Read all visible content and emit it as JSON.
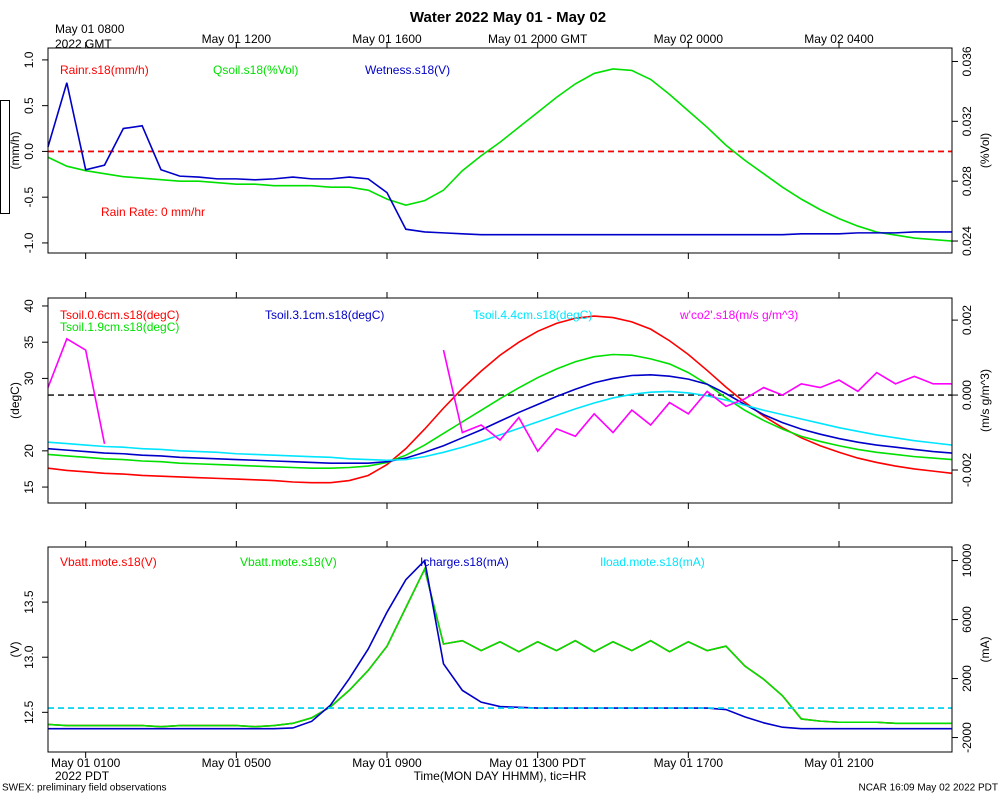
{
  "title": "Water 2022 May 01 - May 02",
  "footer_left": "SWEX: preliminary field observations",
  "footer_right": "NCAR 16:09 May 02 2022 PDT",
  "chart_data": [
    {
      "type": "line",
      "position": "top",
      "ylabel": "(mm/h)",
      "y2label": "(%Vol)",
      "annotation": "Rain Rate: 0 mm/hr",
      "xlim": [
        0,
        24
      ],
      "xticks": [
        {
          "value": 1,
          "label": "May 01 0800"
        },
        {
          "value": 5,
          "label": "May 01 1200"
        },
        {
          "value": 9,
          "label": "May 01 1600"
        },
        {
          "value": 13,
          "label": "May 01 2000 GMT"
        },
        {
          "value": 17,
          "label": "May 02 0000"
        },
        {
          "value": 21,
          "label": "May 02 0400"
        }
      ],
      "xtick_note": "2022 GMT",
      "ylim": [
        -1.11,
        1.13
      ],
      "yticks": [
        {
          "value": -1,
          "label": "-1.0"
        },
        -0.5,
        {
          "value": 0,
          "label": "0.0"
        },
        0.5,
        {
          "value": 1,
          "label": "1.0"
        }
      ],
      "y2lim": [
        0.0232,
        0.0369
      ],
      "y2ticks": [
        0.024,
        0.028,
        0.032,
        0.036
      ],
      "zero_line": "y",
      "x": [
        0,
        0.5,
        1,
        1.5,
        2,
        2.5,
        3,
        3.5,
        4,
        4.5,
        5,
        5.5,
        6,
        6.5,
        7,
        7.5,
        8,
        8.5,
        9,
        9.5,
        10,
        10.5,
        11,
        11.5,
        12,
        12.5,
        13,
        13.5,
        14,
        14.5,
        15,
        15.5,
        16,
        16.5,
        17,
        17.5,
        18,
        18.5,
        19,
        19.5,
        20,
        20.5,
        21,
        21.5,
        22,
        22.5,
        23,
        23.5,
        24
      ],
      "series": [
        {
          "name": "Rainr.s18(mm/h)",
          "color": "#ff0000",
          "dashed": true,
          "values": [
            0,
            0,
            0,
            0,
            0,
            0,
            0,
            0,
            0,
            0,
            0,
            0,
            0,
            0,
            0,
            0,
            0,
            0,
            0,
            0,
            0,
            0,
            0,
            0,
            0,
            0,
            0,
            0,
            0,
            0,
            0,
            0,
            0,
            0,
            0,
            0,
            0,
            0,
            0,
            0,
            0,
            0,
            0,
            0,
            0,
            0,
            0,
            0,
            0
          ]
        },
        {
          "name": "Qsoil.s18(%Vol)",
          "color": "#00e000",
          "axis": "y2",
          "values": [
            0.0296,
            0.029,
            0.0287,
            0.0285,
            0.0283,
            0.0282,
            0.0281,
            0.028,
            0.028,
            0.0279,
            0.0278,
            0.0278,
            0.0277,
            0.0277,
            0.0277,
            0.0276,
            0.0276,
            0.0274,
            0.0268,
            0.0264,
            0.0267,
            0.0274,
            0.0287,
            0.0297,
            0.0306,
            0.0316,
            0.0326,
            0.0336,
            0.0345,
            0.0352,
            0.0355,
            0.0354,
            0.0348,
            0.0338,
            0.0327,
            0.0316,
            0.0304,
            0.0294,
            0.0285,
            0.0276,
            0.0268,
            0.0261,
            0.0255,
            0.025,
            0.0246,
            0.0244,
            0.0242,
            0.0241,
            0.024
          ]
        },
        {
          "name": "Wetness.s18(V)",
          "color": "#0000c8",
          "values": [
            0.05,
            0.75,
            -0.2,
            -0.15,
            0.25,
            0.28,
            -0.2,
            -0.27,
            -0.28,
            -0.3,
            -0.3,
            -0.31,
            -0.3,
            -0.28,
            -0.3,
            -0.3,
            -0.28,
            -0.3,
            -0.45,
            -0.85,
            -0.88,
            -0.89,
            -0.9,
            -0.91,
            -0.91,
            -0.91,
            -0.91,
            -0.91,
            -0.91,
            -0.91,
            -0.91,
            -0.91,
            -0.91,
            -0.91,
            -0.91,
            -0.91,
            -0.91,
            -0.91,
            -0.91,
            -0.91,
            -0.9,
            -0.9,
            -0.9,
            -0.89,
            -0.89,
            -0.89,
            -0.88,
            -0.88,
            -0.88
          ]
        }
      ]
    },
    {
      "type": "line",
      "position": "middle",
      "ylabel": "(degC)",
      "y2label": "(m/s g/m^3)",
      "xlim": [
        0,
        24
      ],
      "xticks": [
        1,
        5,
        9,
        13,
        17,
        21
      ],
      "ylim": [
        12.8,
        41.1
      ],
      "yticks": [
        15,
        20,
        30,
        35,
        40
      ],
      "y2lim": [
        -0.00288,
        0.00259
      ],
      "y2ticks": [
        -0.002,
        {
          "value": 0,
          "label": "0.000"
        },
        0.002
      ],
      "zero_line": "y2",
      "x": [
        0,
        0.5,
        1,
        1.5,
        2,
        2.5,
        3,
        3.5,
        4,
        4.5,
        5,
        5.5,
        6,
        6.5,
        7,
        7.5,
        8,
        8.5,
        9,
        9.5,
        10,
        10.5,
        11,
        11.5,
        12,
        12.5,
        13,
        13.5,
        14,
        14.5,
        15,
        15.5,
        16,
        16.5,
        17,
        17.5,
        18,
        18.5,
        19,
        19.5,
        20,
        20.5,
        21,
        21.5,
        22,
        22.5,
        23,
        23.5,
        24
      ],
      "series": [
        {
          "name": "Tsoil.0.6cm.s18(degC)",
          "color": "#ff0000",
          "values": [
            17.6,
            17.3,
            17.1,
            16.9,
            16.8,
            16.6,
            16.5,
            16.4,
            16.3,
            16.2,
            16.1,
            16.0,
            15.9,
            15.7,
            15.6,
            15.6,
            15.9,
            16.6,
            18.1,
            20.3,
            23.0,
            25.9,
            28.6,
            31.0,
            33.2,
            35.0,
            36.5,
            37.6,
            38.3,
            38.6,
            38.4,
            37.8,
            36.8,
            35.2,
            33.3,
            31.1,
            28.8,
            26.7,
            24.8,
            23.2,
            21.8,
            20.7,
            19.8,
            19.0,
            18.4,
            17.9,
            17.5,
            17.2,
            16.9
          ]
        },
        {
          "name": "Tsoil.1.9cm.s18(degC)",
          "color": "#00e000",
          "values": [
            19.5,
            19.3,
            19.1,
            18.9,
            18.8,
            18.6,
            18.5,
            18.3,
            18.2,
            18.1,
            18.0,
            17.9,
            17.8,
            17.7,
            17.6,
            17.6,
            17.7,
            17.9,
            18.4,
            19.4,
            20.8,
            22.4,
            24.0,
            25.6,
            27.2,
            28.7,
            30.1,
            31.3,
            32.3,
            33.0,
            33.3,
            33.2,
            32.7,
            32.0,
            30.8,
            29.2,
            27.3,
            25.6,
            24.2,
            23.0,
            22.0,
            21.3,
            20.7,
            20.2,
            19.8,
            19.5,
            19.2,
            19.0,
            18.8
          ]
        },
        {
          "name": "Tsoil.3.1cm.s18(degC)",
          "color": "#0000c8",
          "values": [
            20.3,
            20.1,
            19.9,
            19.7,
            19.6,
            19.4,
            19.3,
            19.1,
            19.0,
            18.9,
            18.8,
            18.7,
            18.6,
            18.5,
            18.4,
            18.3,
            18.3,
            18.3,
            18.5,
            19.0,
            19.8,
            20.7,
            21.8,
            22.9,
            24.1,
            25.3,
            26.4,
            27.5,
            28.5,
            29.4,
            30.0,
            30.4,
            30.5,
            30.3,
            29.9,
            29.2,
            27.9,
            26.4,
            25.0,
            23.9,
            23.0,
            22.3,
            21.7,
            21.2,
            20.8,
            20.5,
            20.2,
            19.9,
            19.7
          ]
        },
        {
          "name": "Tsoil.4.4cm.s18(degC)",
          "color": "#00e5ff",
          "values": [
            21.2,
            21.0,
            20.8,
            20.6,
            20.5,
            20.3,
            20.2,
            20.0,
            19.9,
            19.8,
            19.6,
            19.5,
            19.4,
            19.3,
            19.2,
            19.1,
            18.9,
            18.8,
            18.7,
            18.8,
            19.2,
            19.8,
            20.5,
            21.3,
            22.2,
            23.1,
            24.0,
            24.9,
            25.8,
            26.6,
            27.3,
            27.8,
            28.1,
            28.2,
            28.0,
            27.6,
            27.0,
            26.3,
            25.6,
            25.0,
            24.4,
            23.8,
            23.2,
            22.7,
            22.2,
            21.8,
            21.4,
            21.1,
            20.8
          ]
        },
        {
          "name": "w'co2'.s18(m/s g/m^3)",
          "color": "#ff00ff",
          "axis": "y2",
          "values": [
            0.0002,
            0.0015,
            0.0012,
            -0.0013,
            null,
            null,
            null,
            null,
            null,
            null,
            null,
            null,
            null,
            null,
            null,
            null,
            null,
            null,
            null,
            null,
            null,
            0.0012,
            -0.001,
            -0.0008,
            -0.0012,
            -0.0006,
            -0.0015,
            -0.0009,
            -0.0011,
            -0.0005,
            -0.001,
            -0.0004,
            -0.0008,
            -0.0002,
            -0.0005,
            0.0001,
            -0.0003,
            -0.0001,
            0.0002,
            0,
            0.0003,
            0.0002,
            0.0004,
            0.0001,
            0.0006,
            0.0003,
            0.0005,
            0.0003,
            0.0003
          ]
        }
      ]
    },
    {
      "type": "line",
      "position": "bottom",
      "ylabel": "(V)",
      "y2label": "(mA)",
      "xlabel": "Time(MON DAY HHMM), tic=HR",
      "xlim": [
        0,
        24
      ],
      "xticks": [
        {
          "value": 1,
          "label": "May 01 0100"
        },
        {
          "value": 5,
          "label": "May 01 0500"
        },
        {
          "value": 9,
          "label": "May 01 0900"
        },
        {
          "value": 13,
          "label": "May 01 1300 PDT"
        },
        {
          "value": 17,
          "label": "May 01 1700"
        },
        {
          "value": 21,
          "label": "May 01 2100"
        }
      ],
      "xtick_note": "2022 PDT",
      "ylim": [
        12.14,
        14.0
      ],
      "yticks": [
        12.5,
        {
          "value": 13,
          "label": "13.0"
        },
        13.5
      ],
      "y2lim": [
        -2980,
        10920
      ],
      "y2ticks": [
        -2000,
        2000,
        6000,
        10000
      ],
      "zero_line": "y2",
      "x": [
        0,
        0.5,
        1,
        1.5,
        2,
        2.5,
        3,
        3.5,
        4,
        4.5,
        5,
        5.5,
        6,
        6.5,
        7,
        7.5,
        8,
        8.5,
        9,
        9.5,
        10,
        10.5,
        11,
        11.5,
        12,
        12.5,
        13,
        13.5,
        14,
        14.5,
        15,
        15.5,
        16,
        16.5,
        17,
        17.5,
        18,
        18.5,
        19,
        19.5,
        20,
        20.5,
        21,
        21.5,
        22,
        22.5,
        23,
        23.5,
        24
      ],
      "series": [
        {
          "name": "Vbatt.mote.s18(V)",
          "color": "#ff0000",
          "values": [
            12.39,
            12.38,
            12.38,
            12.38,
            12.38,
            12.38,
            12.37,
            12.38,
            12.38,
            12.38,
            12.38,
            12.37,
            12.38,
            12.4,
            12.45,
            12.55,
            12.7,
            12.88,
            13.1,
            13.45,
            13.8,
            13.12,
            13.15,
            13.06,
            13.14,
            13.05,
            13.14,
            13.06,
            13.15,
            13.05,
            13.14,
            13.06,
            13.15,
            13.05,
            13.14,
            13.06,
            13.1,
            12.92,
            12.8,
            12.65,
            12.44,
            12.42,
            12.41,
            12.41,
            12.41,
            12.4,
            12.4,
            12.4,
            12.4
          ]
        },
        {
          "name": "Vbatt.mote.s18(V)",
          "color": "#00e000",
          "values": [
            12.39,
            12.38,
            12.38,
            12.38,
            12.38,
            12.38,
            12.37,
            12.38,
            12.38,
            12.38,
            12.38,
            12.37,
            12.38,
            12.4,
            12.45,
            12.55,
            12.7,
            12.88,
            13.1,
            13.45,
            13.8,
            13.12,
            13.15,
            13.06,
            13.14,
            13.05,
            13.14,
            13.06,
            13.15,
            13.05,
            13.14,
            13.06,
            13.15,
            13.05,
            13.14,
            13.06,
            13.1,
            12.92,
            12.8,
            12.65,
            12.44,
            12.42,
            12.41,
            12.41,
            12.41,
            12.4,
            12.4,
            12.4,
            12.4
          ]
        },
        {
          "name": "Icharge.s18(mA)",
          "color": "#0000c8",
          "axis": "y2",
          "values": [
            -1400,
            -1400,
            -1400,
            -1400,
            -1400,
            -1400,
            -1400,
            -1400,
            -1400,
            -1400,
            -1400,
            -1400,
            -1400,
            -1350,
            -900,
            200,
            2000,
            4000,
            6500,
            8700,
            10000,
            3000,
            1200,
            400,
            100,
            50,
            0,
            0,
            0,
            0,
            0,
            0,
            0,
            0,
            0,
            0,
            -100,
            -600,
            -1000,
            -1300,
            -1400,
            -1400,
            -1400,
            -1400,
            -1400,
            -1400,
            -1400,
            -1400,
            -1400
          ]
        },
        {
          "name": "Iload.mote.s18(mA)",
          "color": "#00e5ff",
          "axis": "y2",
          "dashed": true,
          "values": [
            0,
            0,
            0,
            0,
            0,
            0,
            0,
            0,
            0,
            0,
            0,
            0,
            0,
            0,
            0,
            0,
            0,
            0,
            0,
            0,
            0,
            0,
            0,
            0,
            0,
            0,
            0,
            0,
            0,
            0,
            0,
            0,
            0,
            0,
            0,
            0,
            0,
            0,
            0,
            0,
            0,
            0,
            0,
            0,
            0,
            0,
            0,
            0,
            0
          ]
        }
      ]
    }
  ]
}
